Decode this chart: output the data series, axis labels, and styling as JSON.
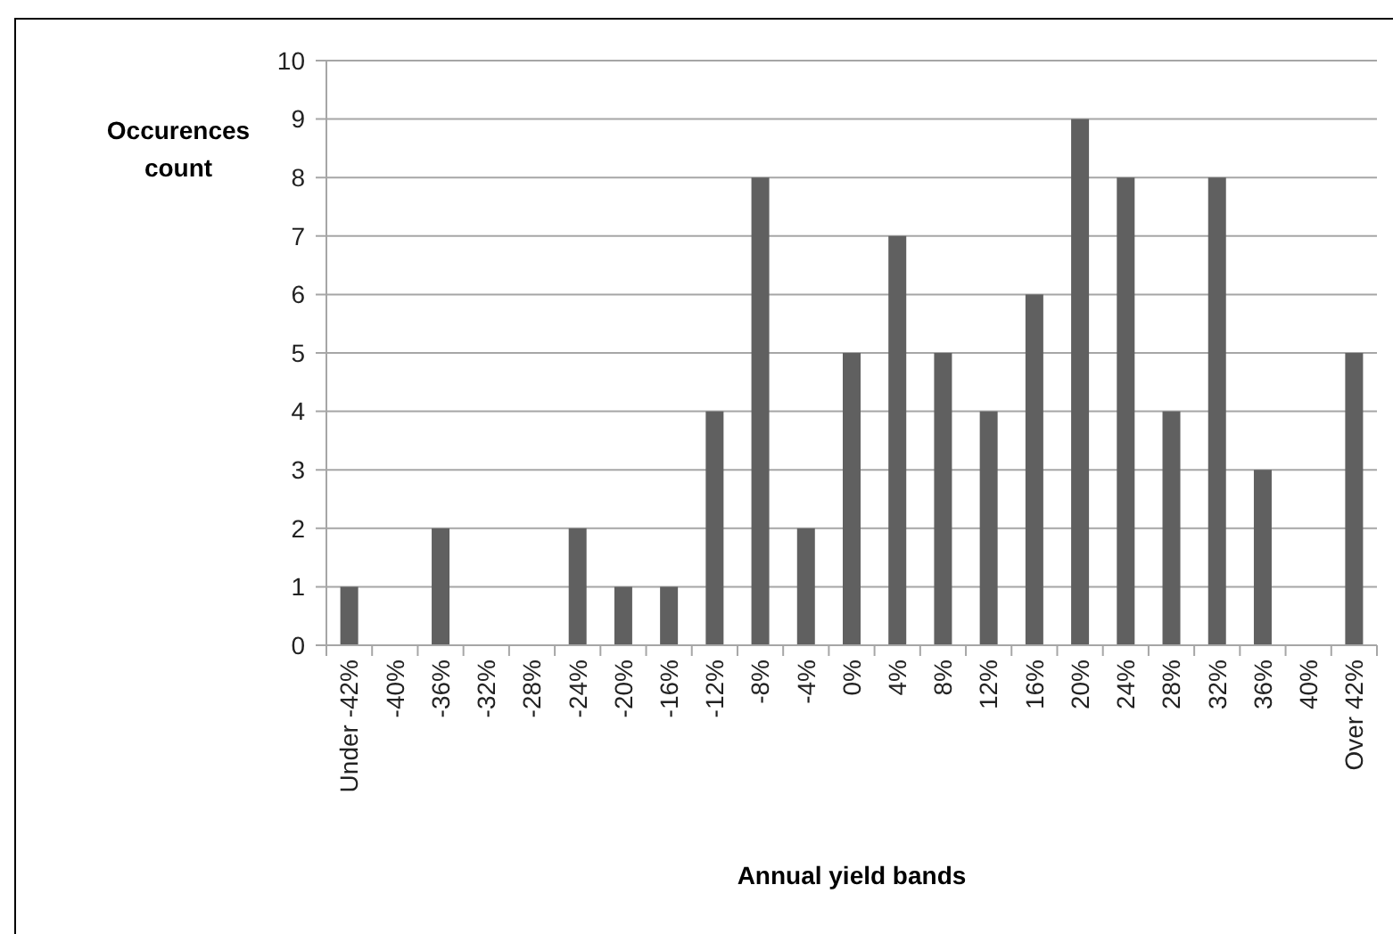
{
  "chart_data": {
    "type": "bar",
    "xlabel": "Annual yield bands",
    "ylabel": "Occurences count",
    "categories": [
      "Under -42%",
      "-40%",
      "-36%",
      "-32%",
      "-28%",
      "-24%",
      "-20%",
      "-16%",
      "-12%",
      "-8%",
      "-4%",
      "0%",
      "4%",
      "8%",
      "12%",
      "16%",
      "20%",
      "24%",
      "28%",
      "32%",
      "36%",
      "40%",
      "Over 42%"
    ],
    "values": [
      1,
      0,
      2,
      0,
      0,
      2,
      1,
      1,
      4,
      8,
      2,
      5,
      7,
      5,
      4,
      6,
      9,
      8,
      4,
      8,
      3,
      0,
      5
    ],
    "color": "#606060",
    "ylim": [
      0,
      10
    ],
    "yticks": [
      0,
      1,
      2,
      3,
      4,
      5,
      6,
      7,
      8,
      9,
      10
    ],
    "grid": "y"
  }
}
